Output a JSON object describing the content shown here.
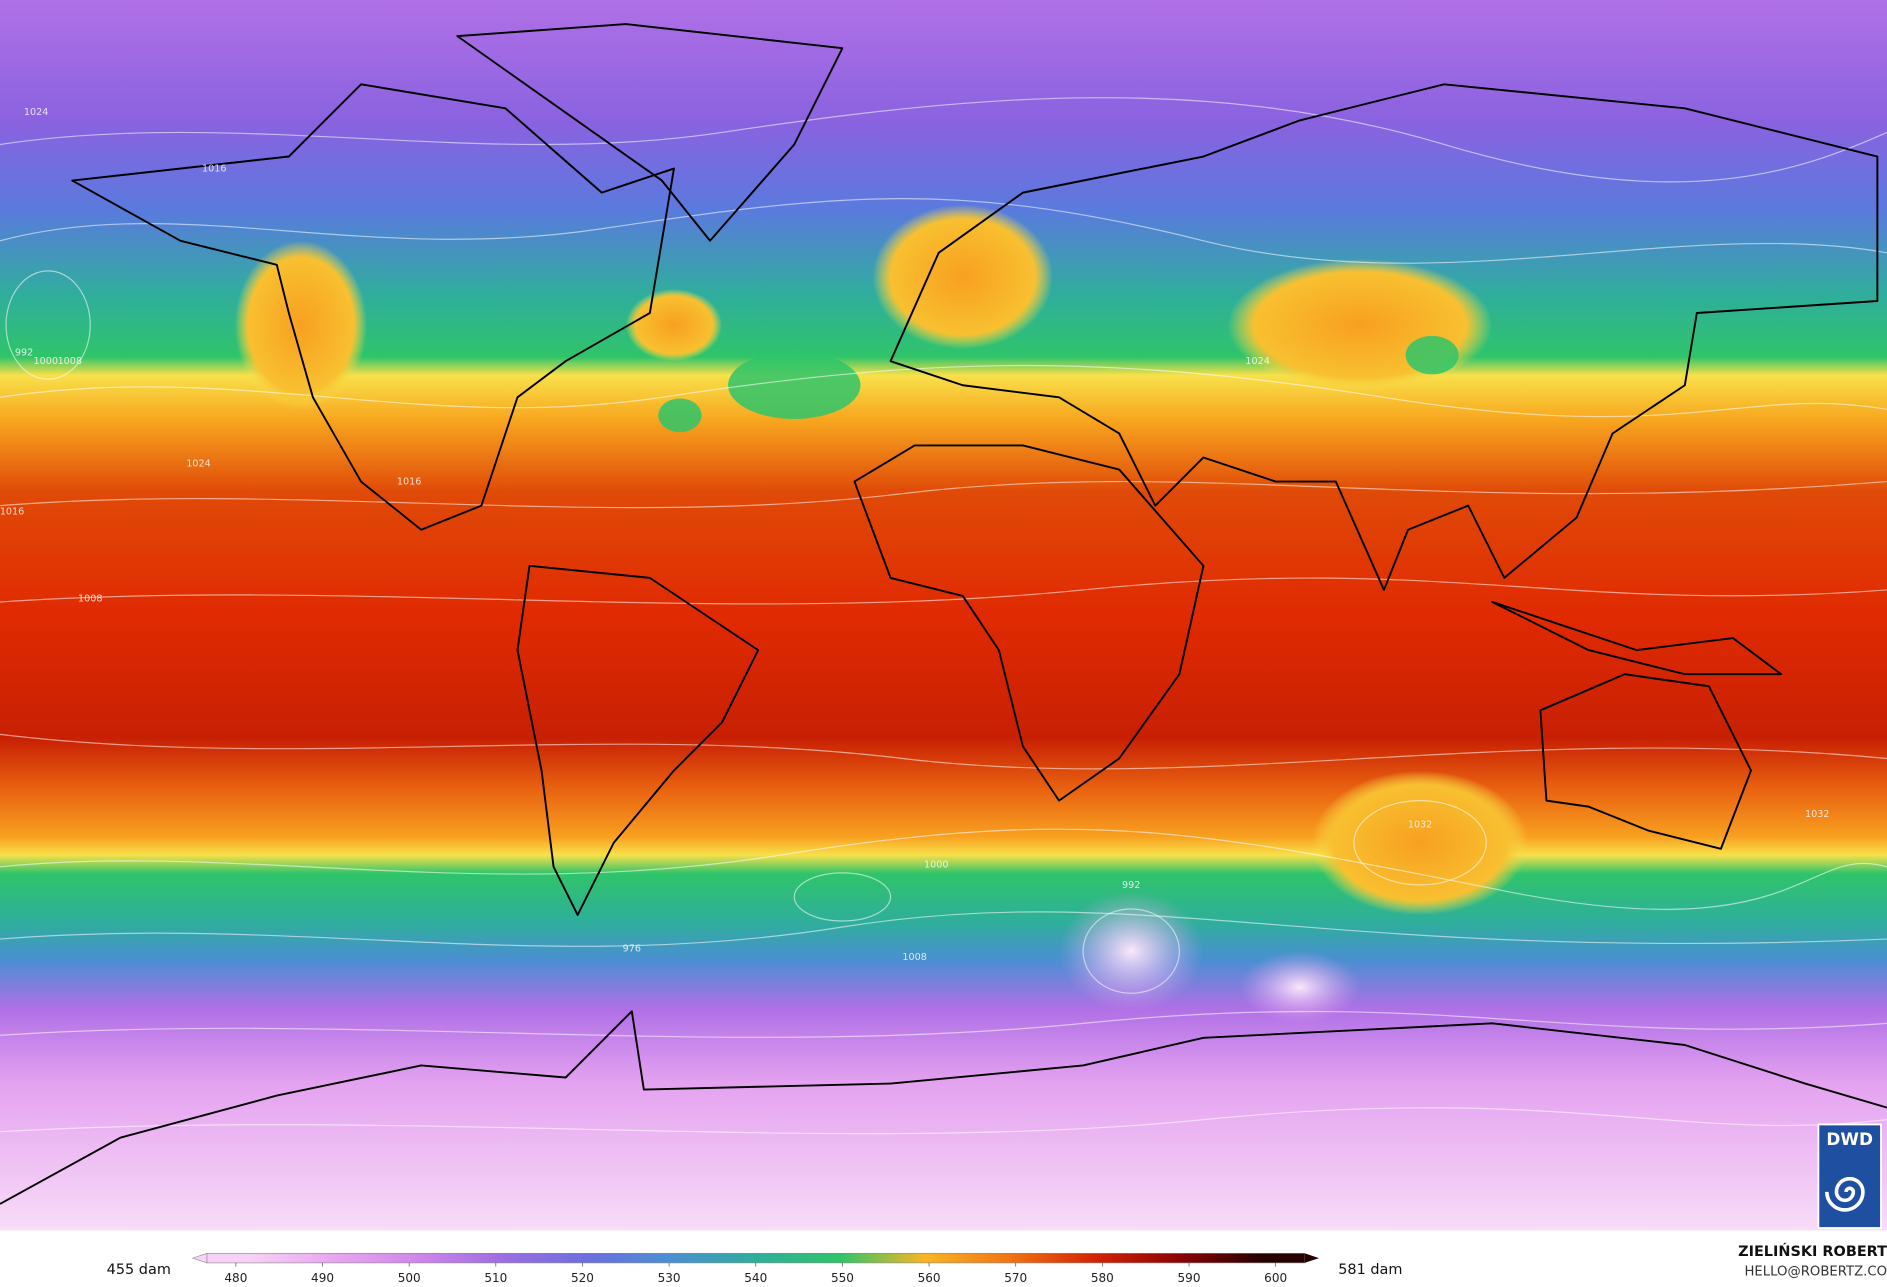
{
  "map": {
    "isobar_labels": [
      "1024",
      "1016",
      "1008",
      "1000",
      "992",
      "1016",
      "1024",
      "1008",
      "1032",
      "1024",
      "1000",
      "992",
      "1008",
      "976",
      "1016",
      "1032"
    ]
  },
  "colorbar": {
    "min_label": "455 dam",
    "max_label": "581 dam",
    "range": [
      475,
      605
    ],
    "ticks": [
      480,
      490,
      500,
      510,
      520,
      530,
      540,
      550,
      560,
      570,
      580,
      590,
      600
    ],
    "colors": [
      "#f6d2f6",
      "#e8a6f0",
      "#cf86ea",
      "#9d6de2",
      "#6c6ee0",
      "#4a8fd2",
      "#2fae9c",
      "#2fc46a",
      "#f8b624",
      "#f27412",
      "#d42404",
      "#8e0202",
      "#250000"
    ]
  },
  "credit": {
    "author": "ZIELIŃSKI ROBERT",
    "contact": "HELLO@ROBERTZ.CO",
    "logo": "DWD"
  }
}
